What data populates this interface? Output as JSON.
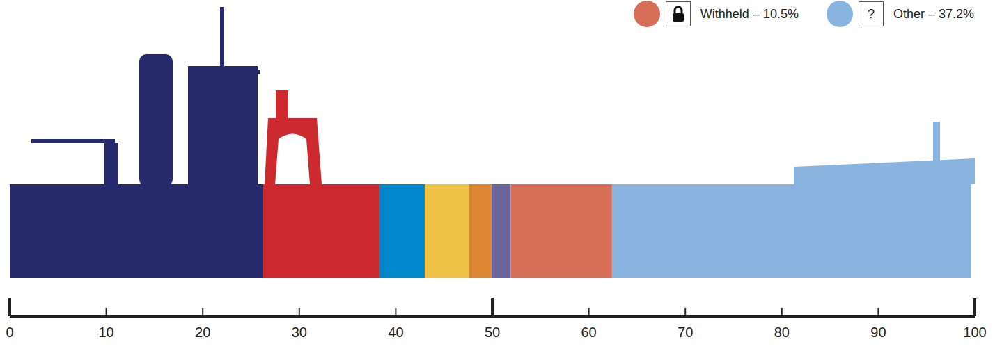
{
  "chart_data": {
    "type": "bar",
    "orientation": "horizontal",
    "stacked": true,
    "xlim": [
      0,
      100
    ],
    "xticks": [
      0,
      10,
      20,
      30,
      40,
      50,
      60,
      70,
      80,
      90,
      100
    ],
    "legend": "top",
    "series": [
      {
        "color": "#262a6c",
        "values": [
          26.2
        ]
      },
      {
        "color": "#cc2a2e",
        "values": [
          12.1
        ]
      },
      {
        "color": "#0088cc",
        "values": [
          4.7
        ]
      },
      {
        "color": "#eec245",
        "values": [
          4.6
        ]
      },
      {
        "color": "#dc8633",
        "values": [
          2.3
        ]
      },
      {
        "color": "#6a649a",
        "values": [
          2.0
        ]
      },
      {
        "name": "Withheld – 10.5%",
        "color": "#d76e58",
        "values": [
          10.5
        ],
        "marker": "lock"
      },
      {
        "name": "Other – 37.2%",
        "color": "#8ab4e0",
        "values": [
          37.2
        ],
        "badge": "?"
      }
    ]
  }
}
